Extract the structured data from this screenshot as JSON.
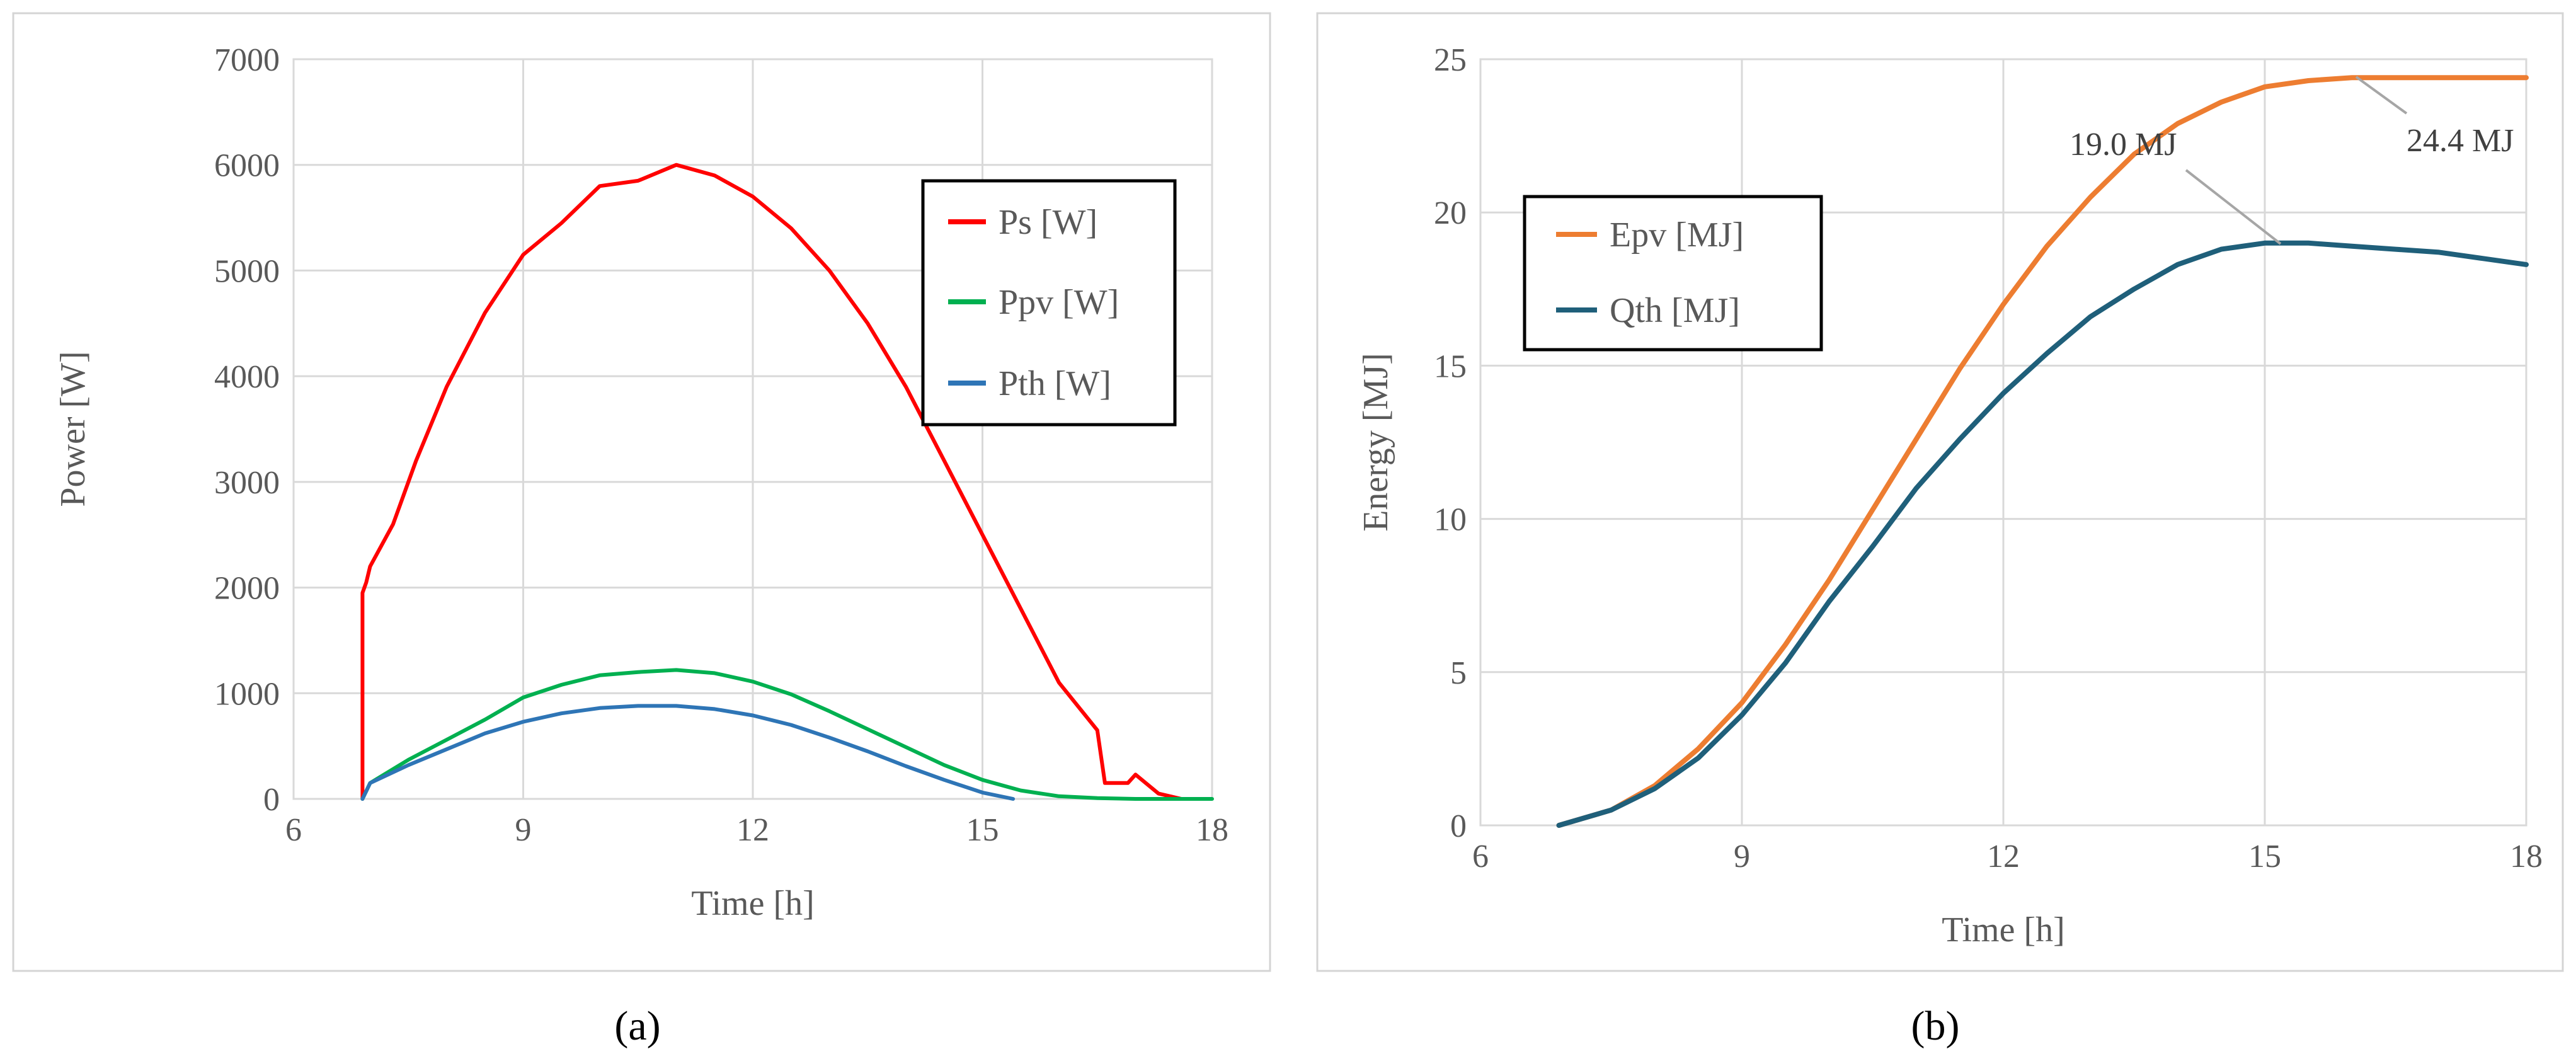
{
  "captions": {
    "a": "(a)",
    "b": "(b)"
  },
  "chart_data": [
    {
      "type": "line",
      "panel": "a",
      "xlabel": "Time [h]",
      "ylabel": "Power [W]",
      "xlim": [
        6,
        18
      ],
      "ylim": [
        0,
        7000
      ],
      "xticks": [
        6,
        9,
        12,
        15,
        18
      ],
      "yticks": [
        0,
        1000,
        2000,
        3000,
        4000,
        5000,
        6000,
        7000
      ],
      "legend_position": "top-right",
      "series": [
        {
          "name": "Ps [W]",
          "color": "#ff0000",
          "x": [
            6.9,
            6.9,
            6.95,
            7.0,
            7.3,
            7.6,
            8.0,
            8.5,
            9.0,
            9.5,
            10.0,
            10.5,
            11.0,
            11.5,
            12.0,
            12.5,
            13.0,
            13.5,
            14.0,
            14.5,
            15.0,
            15.5,
            16.0,
            16.5,
            16.6,
            16.9,
            17.0,
            17.3,
            17.6
          ],
          "y": [
            0,
            1950,
            2050,
            2200,
            2600,
            3200,
            3900,
            4600,
            5150,
            5450,
            5800,
            5850,
            6000,
            5900,
            5700,
            5400,
            5000,
            4500,
            3900,
            3200,
            2500,
            1800,
            1100,
            650,
            150,
            150,
            230,
            50,
            0
          ]
        },
        {
          "name": "Ppv [W]",
          "color": "#00b050",
          "x": [
            6.9,
            7.0,
            7.5,
            8.0,
            8.5,
            9.0,
            9.5,
            10.0,
            10.5,
            11.0,
            11.5,
            12.0,
            12.5,
            13.0,
            13.5,
            14.0,
            14.5,
            15.0,
            15.5,
            16.0,
            16.5,
            17.0,
            17.5,
            18.0
          ],
          "y": [
            0,
            150,
            370,
            560,
            750,
            960,
            1080,
            1170,
            1200,
            1220,
            1190,
            1110,
            990,
            830,
            660,
            490,
            320,
            180,
            80,
            25,
            8,
            0,
            0,
            0
          ]
        },
        {
          "name": "Pth [W]",
          "color": "#2e75b6",
          "x": [
            6.9,
            7.0,
            7.5,
            8.0,
            8.5,
            9.0,
            9.5,
            10.0,
            10.5,
            11.0,
            11.5,
            12.0,
            12.5,
            13.0,
            13.5,
            14.0,
            14.5,
            15.0,
            15.4
          ],
          "y": [
            0,
            150,
            320,
            470,
            620,
            730,
            810,
            860,
            880,
            880,
            850,
            790,
            700,
            580,
            450,
            310,
            180,
            60,
            0
          ]
        }
      ]
    },
    {
      "type": "line",
      "panel": "b",
      "xlabel": "Time [h]",
      "ylabel": "Energy [MJ]",
      "xlim": [
        6,
        18
      ],
      "ylim": [
        0,
        25
      ],
      "xticks": [
        6,
        9,
        12,
        15,
        18
      ],
      "yticks": [
        0,
        5,
        10,
        15,
        20,
        25
      ],
      "legend_position": "top-left",
      "series": [
        {
          "name": "Epv [MJ]",
          "color": "#ed7d31",
          "x": [
            6.9,
            7.5,
            8.0,
            8.5,
            9.0,
            9.5,
            10.0,
            10.5,
            11.0,
            11.5,
            12.0,
            12.5,
            13.0,
            13.5,
            14.0,
            14.5,
            15.0,
            15.5,
            16.0,
            16.5,
            17.0,
            18.0
          ],
          "y": [
            0,
            0.5,
            1.3,
            2.5,
            4.0,
            5.9,
            8.0,
            10.3,
            12.6,
            14.9,
            17.0,
            18.9,
            20.5,
            21.9,
            22.9,
            23.6,
            24.1,
            24.3,
            24.4,
            24.4,
            24.4,
            24.4
          ]
        },
        {
          "name": "Qth [MJ]",
          "color": "#1f5f7a",
          "x": [
            6.9,
            7.5,
            8.0,
            8.5,
            9.0,
            9.5,
            10.0,
            10.5,
            11.0,
            11.5,
            12.0,
            12.5,
            13.0,
            13.5,
            14.0,
            14.5,
            15.0,
            15.5,
            16.0,
            16.5,
            17.0,
            17.5,
            18.0
          ],
          "y": [
            0,
            0.5,
            1.2,
            2.2,
            3.6,
            5.3,
            7.3,
            9.1,
            11.0,
            12.6,
            14.1,
            15.4,
            16.6,
            17.5,
            18.3,
            18.8,
            19.0,
            19.0,
            18.9,
            18.8,
            18.7,
            18.5,
            18.3
          ]
        }
      ],
      "annotations": [
        {
          "text": "24.4 MJ",
          "x": 16.1,
          "y": 24.4
        },
        {
          "text": "19.0 MJ",
          "x": 15.7,
          "y": 19.0
        }
      ]
    }
  ]
}
